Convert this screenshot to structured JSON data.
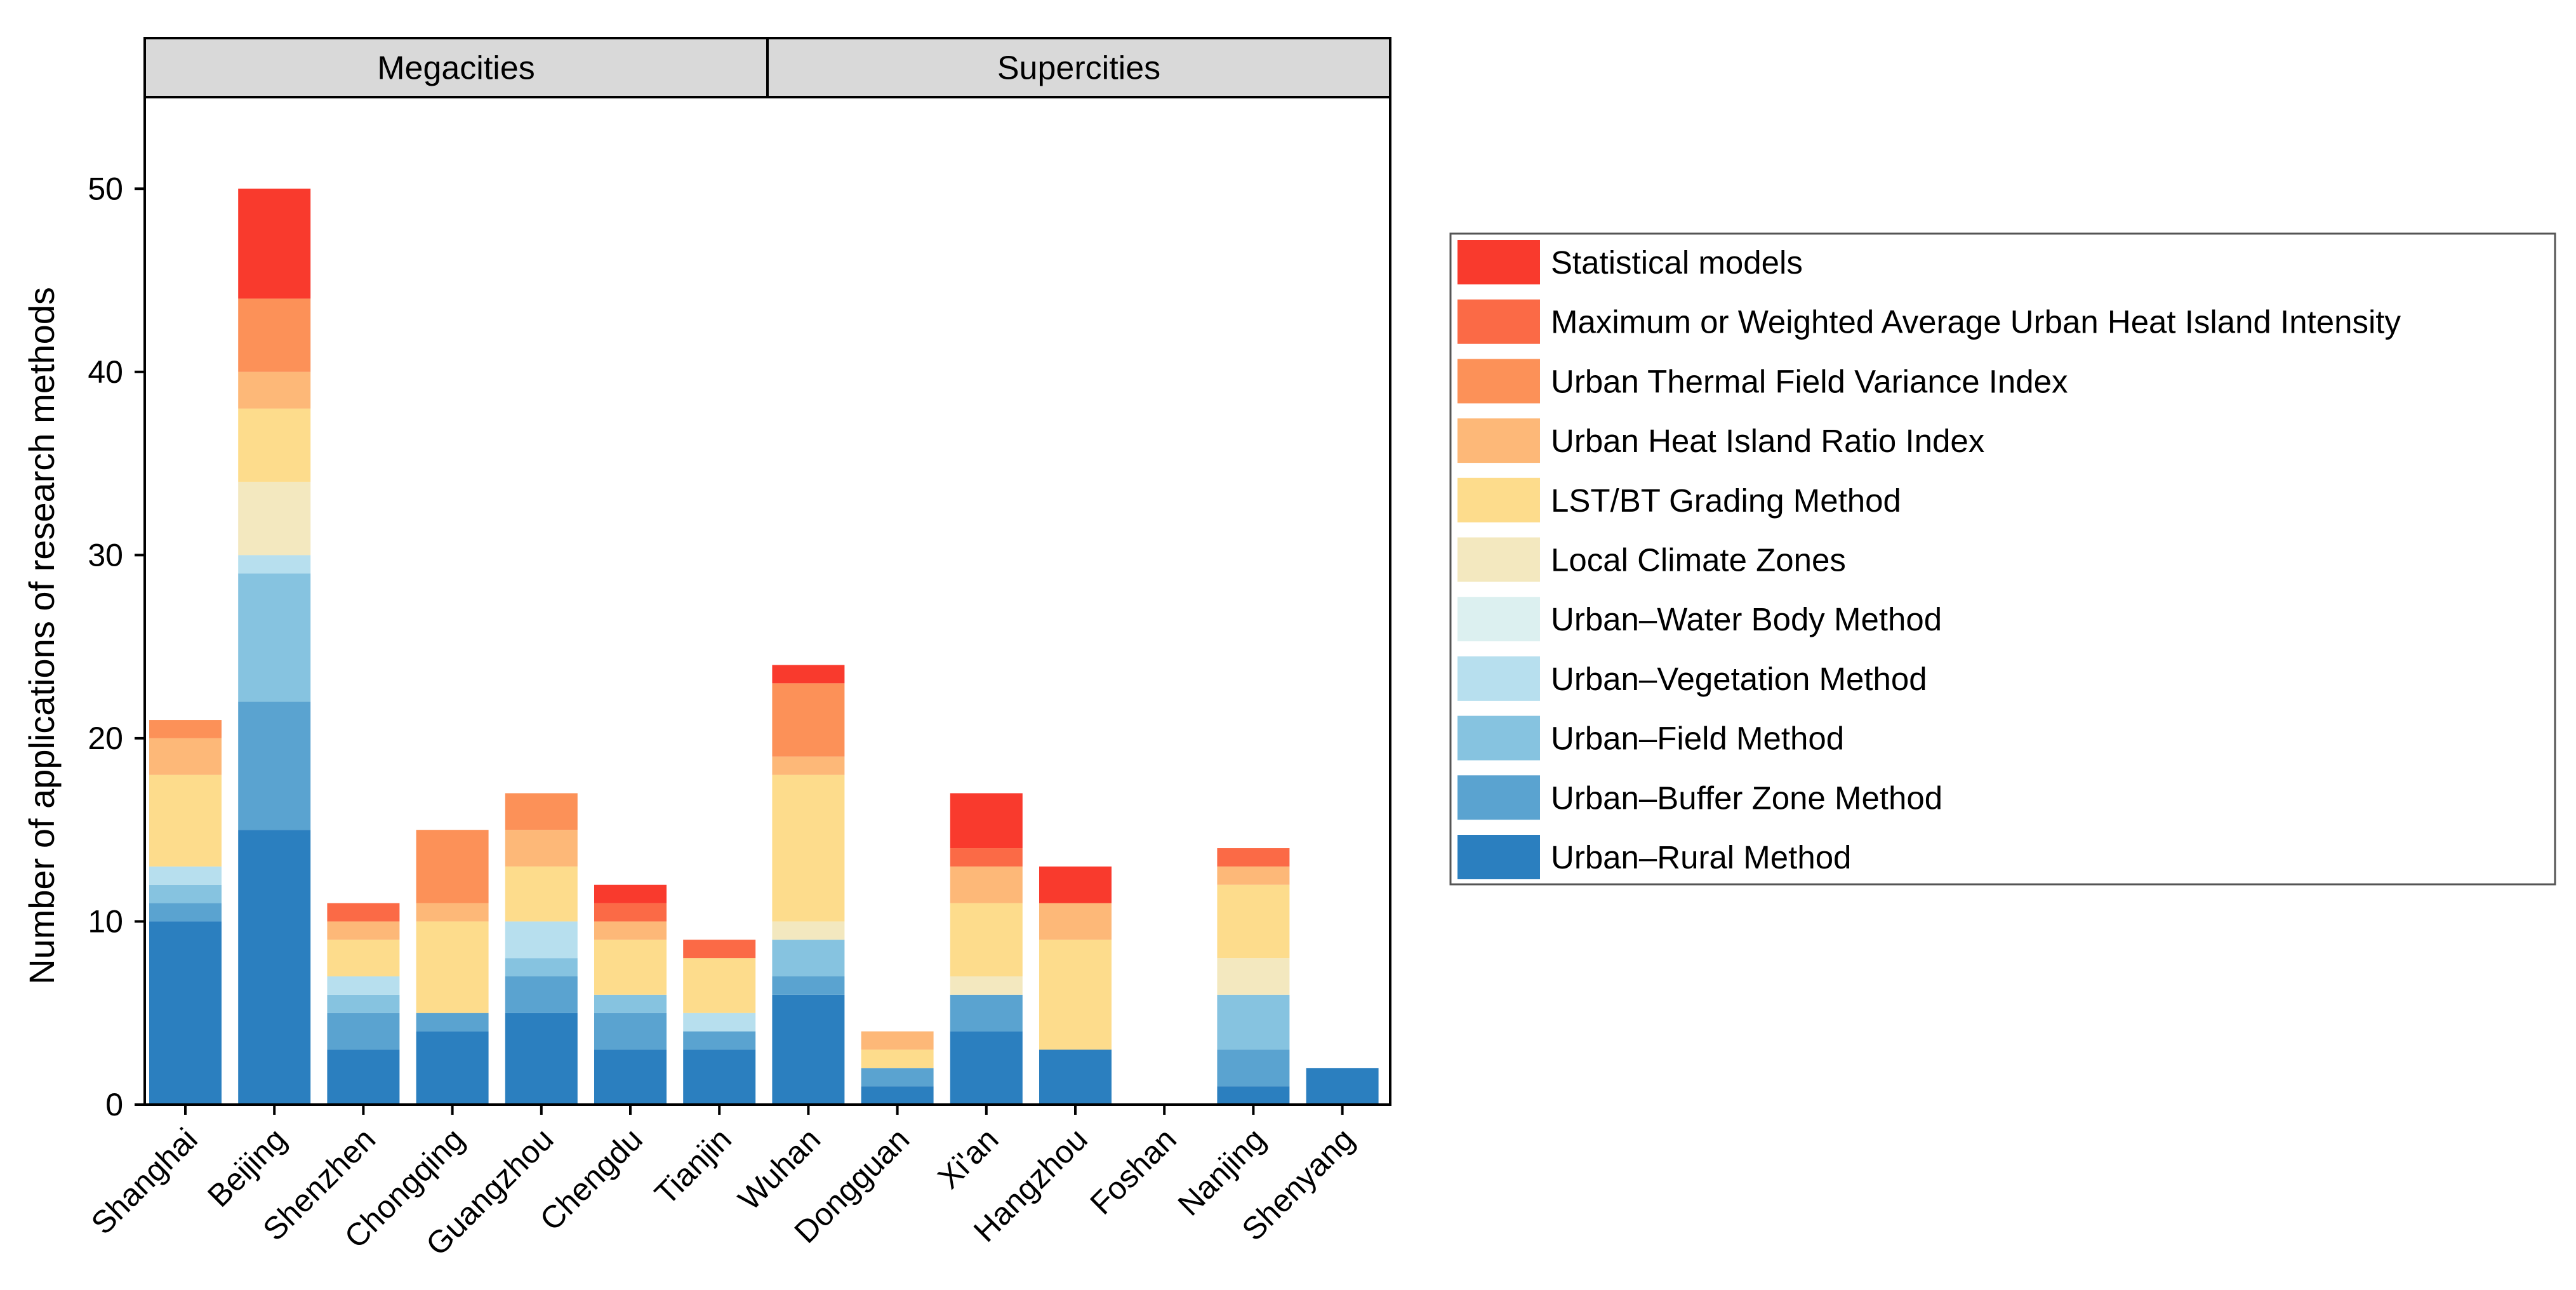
{
  "chart_data": {
    "type": "bar",
    "stacked": true,
    "title": "",
    "xlabel": "",
    "ylabel": "Number of applications of research methods",
    "ylim": [
      0,
      55
    ],
    "yticks": [
      0,
      10,
      20,
      30,
      40,
      50
    ],
    "grid": false,
    "legend_position": "right",
    "panels": [
      {
        "label": "Megacities",
        "categories": [
          "Shanghai",
          "Beijing",
          "Shenzhen",
          "Chongqing",
          "Guangzhou",
          "Chengdu",
          "Tianjin"
        ]
      },
      {
        "label": "Supercities",
        "categories": [
          "Wuhan",
          "Dongguan",
          "Xi'an",
          "Hangzhou",
          "Foshan",
          "Nanjing",
          "Shenyang"
        ]
      }
    ],
    "categories": [
      "Shanghai",
      "Beijing",
      "Shenzhen",
      "Chongqing",
      "Guangzhou",
      "Chengdu",
      "Tianjin",
      "Wuhan",
      "Dongguan",
      "Xi'an",
      "Hangzhou",
      "Foshan",
      "Nanjing",
      "Shenyang"
    ],
    "series": [
      {
        "name": "Urban–Rural Method",
        "color": "#2b7fbf",
        "values": [
          10,
          15,
          3,
          4,
          5,
          3,
          3,
          6,
          1,
          4,
          3,
          0,
          1,
          2
        ]
      },
      {
        "name": "Urban–Buffer Zone Method",
        "color": "#5aa3d0",
        "values": [
          1,
          7,
          2,
          1,
          2,
          2,
          1,
          1,
          1,
          2,
          0,
          0,
          2,
          0
        ]
      },
      {
        "name": "Urban–Field Method",
        "color": "#86c3e0",
        "values": [
          1,
          7,
          1,
          0,
          1,
          1,
          0,
          2,
          0,
          0,
          0,
          0,
          3,
          0
        ]
      },
      {
        "name": "Urban–Vegetation Method",
        "color": "#b7dfee",
        "values": [
          1,
          1,
          1,
          0,
          2,
          0,
          1,
          0,
          0,
          0,
          0,
          0,
          0,
          0
        ]
      },
      {
        "name": "Urban–Water Body Method",
        "color": "#dcf0f0",
        "values": [
          0,
          0,
          0,
          0,
          0,
          0,
          0,
          0,
          0,
          0,
          0,
          0,
          0,
          0
        ]
      },
      {
        "name": "Local Climate Zones",
        "color": "#f3e8bf",
        "values": [
          0,
          4,
          0,
          0,
          0,
          0,
          0,
          1,
          0,
          1,
          0,
          0,
          2,
          0
        ]
      },
      {
        "name": "LST/BT Grading Method",
        "color": "#fddc8c",
        "values": [
          5,
          4,
          2,
          5,
          3,
          3,
          3,
          8,
          1,
          4,
          6,
          0,
          4,
          0
        ]
      },
      {
        "name": "Urban Heat Island Ratio Index",
        "color": "#fdb878",
        "values": [
          2,
          2,
          1,
          1,
          2,
          1,
          0,
          1,
          1,
          2,
          2,
          0,
          1,
          0
        ]
      },
      {
        "name": "Urban Thermal Field Variance Index",
        "color": "#fc9158",
        "values": [
          1,
          4,
          0,
          4,
          2,
          0,
          0,
          4,
          0,
          0,
          0,
          0,
          0,
          0
        ]
      },
      {
        "name": "Maximum or Weighted Average Urban Heat Island Intensity",
        "color": "#fb6a46",
        "values": [
          0,
          0,
          1,
          0,
          0,
          1,
          1,
          0,
          0,
          1,
          0,
          0,
          1,
          0
        ]
      },
      {
        "name": "Statistical models",
        "color": "#f93a2d",
        "values": [
          0,
          6,
          0,
          0,
          0,
          1,
          0,
          1,
          0,
          3,
          2,
          0,
          0,
          0
        ]
      }
    ]
  }
}
